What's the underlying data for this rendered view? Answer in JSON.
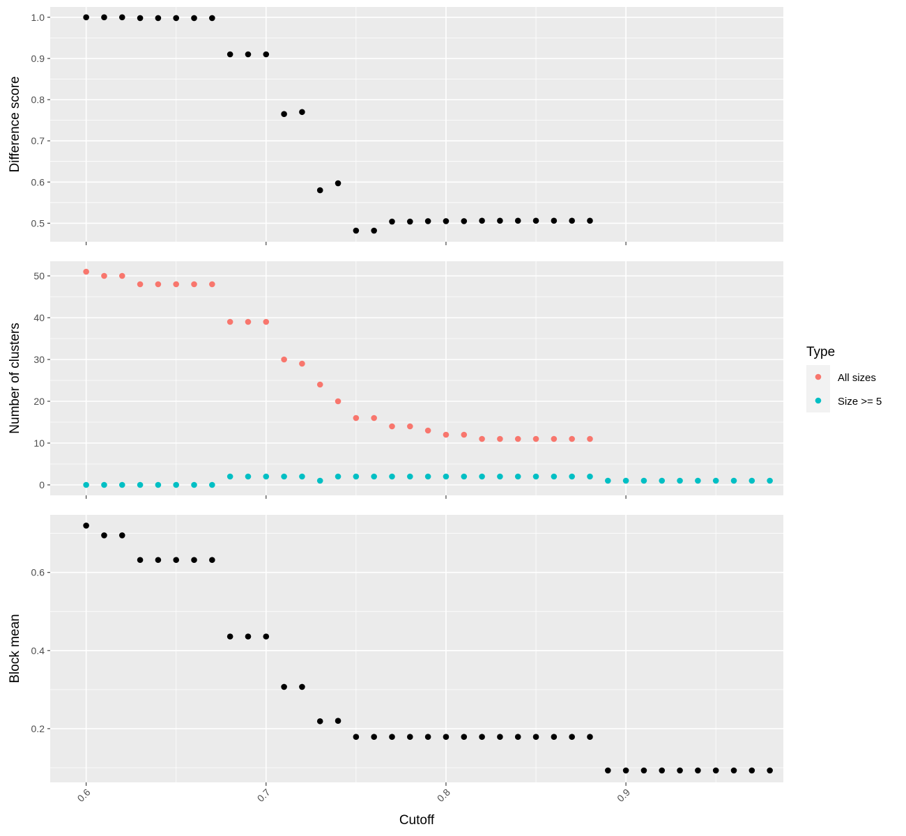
{
  "chart_data": [
    {
      "type": "scatter",
      "ylabel": "Difference score",
      "xlim": [
        0.58,
        0.9875
      ],
      "ylim": [
        0.455,
        1.025
      ],
      "y_breaks": [
        0.5,
        0.6,
        0.7,
        0.8,
        0.9,
        1.0
      ],
      "y_tick_labels": [
        "0.5",
        "0.6",
        "0.7",
        "0.8",
        "0.9",
        "1.0"
      ],
      "series": [
        {
          "color": "#000000",
          "x": [
            0.6,
            0.61,
            0.62,
            0.63,
            0.64,
            0.65,
            0.66,
            0.67,
            0.68,
            0.69,
            0.7,
            0.71,
            0.72,
            0.73,
            0.74,
            0.75,
            0.76,
            0.77,
            0.78,
            0.79,
            0.8,
            0.81,
            0.82,
            0.83,
            0.84,
            0.85,
            0.86,
            0.87,
            0.88
          ],
          "y": [
            1.0,
            1.0,
            1.0,
            0.998,
            0.998,
            0.998,
            0.998,
            0.998,
            0.91,
            0.91,
            0.91,
            0.765,
            0.77,
            0.58,
            0.597,
            0.482,
            0.482,
            0.504,
            0.504,
            0.505,
            0.505,
            0.505,
            0.506,
            0.506,
            0.506,
            0.506,
            0.506,
            0.506,
            0.506
          ]
        }
      ]
    },
    {
      "type": "scatter",
      "ylabel": "Number of clusters",
      "xlim": [
        0.58,
        0.9875
      ],
      "ylim": [
        -2.5,
        53.5
      ],
      "y_breaks": [
        0,
        10,
        20,
        30,
        40,
        50
      ],
      "y_tick_labels": [
        "0",
        "10",
        "20",
        "30",
        "40",
        "50"
      ],
      "series": [
        {
          "name": "All sizes",
          "color": "#f8766d",
          "x": [
            0.6,
            0.61,
            0.62,
            0.63,
            0.64,
            0.65,
            0.66,
            0.67,
            0.68,
            0.69,
            0.7,
            0.71,
            0.72,
            0.73,
            0.74,
            0.75,
            0.76,
            0.77,
            0.78,
            0.79,
            0.8,
            0.81,
            0.82,
            0.83,
            0.84,
            0.85,
            0.86,
            0.87,
            0.88
          ],
          "y": [
            51,
            50,
            50,
            48,
            48,
            48,
            48,
            48,
            39,
            39,
            39,
            30,
            29,
            24,
            20,
            16,
            16,
            14,
            14,
            13,
            12,
            12,
            11,
            11,
            11,
            11,
            11,
            11,
            11
          ]
        },
        {
          "name": "Size >= 5",
          "color": "#00bfc4",
          "x": [
            0.6,
            0.61,
            0.62,
            0.63,
            0.64,
            0.65,
            0.66,
            0.67,
            0.68,
            0.69,
            0.7,
            0.71,
            0.72,
            0.73,
            0.74,
            0.75,
            0.76,
            0.77,
            0.78,
            0.79,
            0.8,
            0.81,
            0.82,
            0.83,
            0.84,
            0.85,
            0.86,
            0.87,
            0.88,
            0.89,
            0.9,
            0.91,
            0.92,
            0.93,
            0.94,
            0.95,
            0.96,
            0.97,
            0.98
          ],
          "y": [
            0,
            0,
            0,
            0,
            0,
            0,
            0,
            0,
            2,
            2,
            2,
            2,
            2,
            1,
            2,
            2,
            2,
            2,
            2,
            2,
            2,
            2,
            2,
            2,
            2,
            2,
            2,
            2,
            2,
            1,
            1,
            1,
            1,
            1,
            1,
            1,
            1,
            1,
            1
          ]
        }
      ]
    },
    {
      "type": "scatter",
      "ylabel": "Block mean",
      "xlabel": "Cutoff",
      "xlim": [
        0.58,
        0.9875
      ],
      "ylim": [
        0.0625,
        0.7475
      ],
      "y_breaks": [
        0.2,
        0.4,
        0.6
      ],
      "y_tick_labels": [
        "0.2",
        "0.4",
        "0.6"
      ],
      "x_breaks": [
        0.6,
        0.7,
        0.8,
        0.9
      ],
      "x_tick_labels": [
        "0.6",
        "0.7",
        "0.8",
        "0.9"
      ],
      "series": [
        {
          "color": "#000000",
          "x": [
            0.6,
            0.61,
            0.62,
            0.63,
            0.64,
            0.65,
            0.66,
            0.67,
            0.68,
            0.69,
            0.7,
            0.71,
            0.72,
            0.73,
            0.74,
            0.75,
            0.76,
            0.77,
            0.78,
            0.79,
            0.8,
            0.81,
            0.82,
            0.83,
            0.84,
            0.85,
            0.86,
            0.87,
            0.88,
            0.89,
            0.9,
            0.91,
            0.92,
            0.93,
            0.94,
            0.95,
            0.96,
            0.97,
            0.98
          ],
          "y": [
            0.72,
            0.695,
            0.695,
            0.632,
            0.632,
            0.632,
            0.632,
            0.632,
            0.436,
            0.436,
            0.436,
            0.307,
            0.307,
            0.219,
            0.22,
            0.179,
            0.179,
            0.179,
            0.179,
            0.179,
            0.179,
            0.179,
            0.179,
            0.179,
            0.179,
            0.179,
            0.179,
            0.179,
            0.179,
            0.093,
            0.093,
            0.093,
            0.093,
            0.093,
            0.093,
            0.093,
            0.093,
            0.093,
            0.093
          ]
        }
      ]
    }
  ],
  "legend": {
    "title": "Type",
    "placement": "right",
    "items": [
      {
        "label": "All sizes",
        "color": "#f8766d"
      },
      {
        "label": "Size >= 5",
        "color": "#00bfc4"
      }
    ]
  },
  "colors": {
    "panel_background": "#ebebeb",
    "grid": "#ffffff"
  }
}
